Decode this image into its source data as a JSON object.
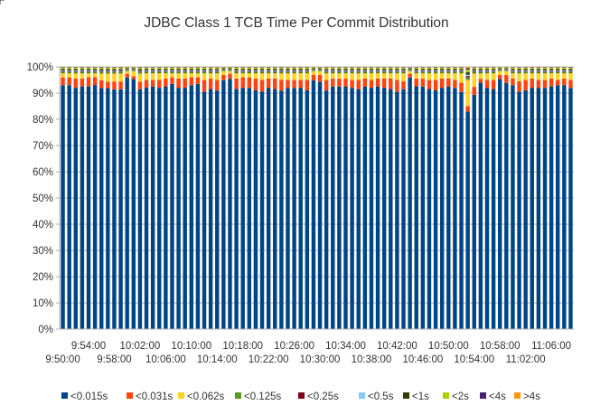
{
  "chart_data": {
    "type": "bar",
    "stacked": true,
    "normalized": true,
    "title": "JDBC Class 1 TCB Time Per Commit Distribution",
    "xlabel": "",
    "ylabel": "",
    "ylim": [
      0,
      100
    ],
    "y_ticks": [
      "0%",
      "10%",
      "20%",
      "30%",
      "40%",
      "50%",
      "60%",
      "70%",
      "80%",
      "90%",
      "100%"
    ],
    "x_tick_labels_upper": [
      "9:54:00",
      "10:02:00",
      "10:10:00",
      "10:18:00",
      "10:26:00",
      "10:34:00",
      "10:42:00",
      "10:50:00",
      "10:58:00",
      "11:06:00"
    ],
    "x_tick_labels_lower": [
      "9:50:00",
      "9:58:00",
      "10:06:00",
      "10:14:00",
      "10:22:00",
      "10:30:00",
      "10:38:00",
      "10:46:00",
      "10:54:00",
      "11:02:00"
    ],
    "grid": true,
    "legend_position": "bottom",
    "categories_count": 80,
    "series": [
      {
        "name": "<0.015s",
        "color": "#004586",
        "values": [
          93,
          93.5,
          92.5,
          93,
          93,
          94,
          92,
          91.5,
          91.5,
          92,
          96,
          95,
          91.5,
          92.5,
          93,
          92,
          93,
          94,
          92.5,
          92.5,
          93.5,
          94,
          91,
          92,
          91,
          95,
          95,
          92,
          92.5,
          92,
          91.5,
          91,
          92.5,
          92,
          91,
          92,
          92,
          92.5,
          91.5,
          95,
          94,
          91,
          92.5,
          92.5,
          93,
          92,
          91.5,
          93,
          92.5,
          93,
          92.5,
          92,
          90.5,
          91.5,
          96,
          93.5,
          92.5,
          92,
          91.5,
          92.5,
          93,
          92,
          90,
          83,
          88,
          93,
          92.5,
          92,
          95.5,
          94,
          93.5,
          91,
          91.5,
          92.5,
          92.5,
          92,
          93,
          93.5,
          93.5,
          92
        ]
      },
      {
        "name": "<0.031s",
        "color": "#ff420e",
        "values": [
          3,
          3,
          3.5,
          3,
          3.5,
          3,
          3,
          2.5,
          3,
          3,
          1.5,
          1,
          3,
          3,
          2.5,
          3,
          3,
          2.5,
          3.5,
          3.5,
          3,
          2.5,
          4.5,
          4,
          4,
          2,
          2,
          4,
          4,
          4,
          4.5,
          4.5,
          3.5,
          4,
          4,
          3,
          3,
          3,
          4,
          2,
          2.5,
          4,
          3,
          3,
          3,
          3,
          3.5,
          3,
          3,
          3,
          3.5,
          4,
          4.5,
          3,
          1.5,
          3,
          3,
          3.5,
          4,
          3.5,
          3,
          3,
          3.5,
          2,
          3,
          1.5,
          3,
          3.5,
          1.5,
          3,
          2.5,
          4,
          4,
          3.5,
          3,
          3,
          3,
          2,
          2.5,
          3
        ]
      },
      {
        "name": "<0.062s",
        "color": "#ffd320",
        "values": [
          1.5,
          1.5,
          2,
          2,
          1.5,
          1.5,
          2.5,
          3,
          3,
          3,
          1,
          2,
          3,
          2.5,
          2.5,
          2.5,
          2,
          1.5,
          2,
          2,
          1.5,
          1.5,
          2.5,
          2,
          2.5,
          1.5,
          1,
          2,
          1.5,
          1.5,
          2,
          2.5,
          2,
          2,
          2.5,
          2.5,
          2.5,
          2.5,
          2.5,
          1.5,
          1.5,
          2.5,
          2,
          2,
          2,
          2.5,
          2.5,
          2,
          2.5,
          2,
          2,
          2,
          2.5,
          3,
          1,
          2,
          2,
          2.5,
          2.5,
          2,
          2,
          2.5,
          3.5,
          10,
          5,
          2,
          2.5,
          2.5,
          1.5,
          1.5,
          2,
          3,
          2.5,
          2,
          2.5,
          2.5,
          2,
          2.5,
          2,
          2.5
        ]
      },
      {
        "name": "<0.125s",
        "color": "#579d1c",
        "values": [
          0.5,
          0.5,
          0.5,
          0.5,
          0.5,
          0.5,
          0.5,
          0.5,
          0.5,
          0.5,
          0.3,
          0.3,
          0.5,
          0.5,
          0.5,
          0.5,
          0.5,
          0.5,
          0.5,
          0.5,
          0.5,
          0.5,
          0.5,
          0.5,
          0.5,
          0.3,
          0.3,
          0.5,
          0.5,
          0.5,
          0.5,
          0.5,
          0.5,
          0.5,
          0.5,
          0.5,
          0.5,
          0.5,
          0.5,
          0.3,
          0.3,
          0.5,
          0.5,
          0.5,
          0.5,
          0.5,
          0.5,
          0.5,
          0.5,
          0.5,
          0.5,
          0.5,
          0.5,
          0.5,
          0.3,
          0.5,
          0.5,
          0.5,
          0.5,
          0.5,
          0.5,
          0.5,
          0.5,
          1,
          0.5,
          0.5,
          0.5,
          0.5,
          0.3,
          0.3,
          0.5,
          0.5,
          0.5,
          0.5,
          0.5,
          0.5,
          0.5,
          0.5,
          0.5,
          0.5
        ]
      },
      {
        "name": "<0.25s",
        "color": "#7e0021",
        "values": [
          0.3,
          0.3,
          0.3,
          0.3,
          0.3,
          0.3,
          0.3,
          0.3,
          0.3,
          0.3,
          0.2,
          0.2,
          0.3,
          0.3,
          0.3,
          0.3,
          0.3,
          0.3,
          0.3,
          0.3,
          0.3,
          0.3,
          0.3,
          0.3,
          0.3,
          0.2,
          0.2,
          0.3,
          0.3,
          0.3,
          0.3,
          0.3,
          0.3,
          0.3,
          0.3,
          0.3,
          0.3,
          0.3,
          0.3,
          0.2,
          0.2,
          0.3,
          0.3,
          0.3,
          0.3,
          0.3,
          0.3,
          0.3,
          0.3,
          0.3,
          0.3,
          0.3,
          0.3,
          0.3,
          0.2,
          0.3,
          0.3,
          0.3,
          0.3,
          0.3,
          0.3,
          0.3,
          0.3,
          0.5,
          0.3,
          0.3,
          0.3,
          0.3,
          0.2,
          0.2,
          0.3,
          0.3,
          0.3,
          0.3,
          0.3,
          0.3,
          0.3,
          0.3,
          0.3,
          0.3
        ]
      },
      {
        "name": "<0.5s",
        "color": "#83caff",
        "values": [
          0.3,
          0.3,
          0.3,
          0.3,
          0.3,
          0.3,
          0.3,
          0.3,
          0.3,
          0.3,
          0.2,
          0.2,
          0.3,
          0.3,
          0.3,
          0.3,
          0.3,
          0.3,
          0.3,
          0.3,
          0.3,
          0.3,
          0.3,
          0.3,
          0.3,
          0.2,
          0.2,
          0.3,
          0.3,
          0.3,
          0.3,
          0.3,
          0.3,
          0.3,
          0.3,
          0.3,
          0.3,
          0.3,
          0.3,
          0.2,
          0.2,
          0.3,
          0.3,
          0.3,
          0.3,
          0.3,
          0.3,
          0.3,
          0.3,
          0.3,
          0.3,
          0.3,
          0.3,
          0.3,
          0.2,
          0.3,
          0.3,
          0.3,
          0.3,
          0.3,
          0.3,
          0.3,
          0.3,
          0.5,
          0.3,
          0.3,
          0.3,
          0.3,
          0.2,
          0.2,
          0.3,
          0.3,
          0.3,
          0.3,
          0.3,
          0.3,
          0.3,
          0.3,
          0.3,
          0.3
        ]
      },
      {
        "name": "<1s",
        "color": "#314004",
        "values": [
          0.6,
          0.6,
          0.6,
          0.6,
          0.6,
          0.6,
          0.7,
          0.7,
          0.7,
          0.7,
          0.4,
          0.4,
          0.7,
          0.6,
          0.6,
          0.6,
          0.6,
          0.6,
          0.6,
          0.6,
          0.6,
          0.6,
          0.6,
          0.6,
          0.6,
          0.4,
          0.4,
          0.6,
          0.6,
          0.6,
          0.6,
          0.6,
          0.6,
          0.6,
          0.6,
          0.6,
          0.6,
          0.6,
          0.6,
          0.4,
          0.4,
          0.6,
          0.6,
          0.6,
          0.6,
          0.6,
          0.6,
          0.6,
          0.6,
          0.6,
          0.6,
          0.6,
          0.6,
          0.6,
          0.4,
          0.6,
          0.6,
          0.6,
          0.6,
          0.6,
          0.6,
          0.6,
          0.6,
          1,
          0.6,
          0.6,
          0.6,
          0.6,
          0.4,
          0.4,
          0.6,
          0.6,
          0.6,
          0.6,
          0.6,
          0.6,
          0.6,
          0.6,
          0.6,
          0.6
        ]
      },
      {
        "name": "<2s",
        "color": "#aecf00",
        "values": [
          0.5,
          0.5,
          0.5,
          0.5,
          0.5,
          0.5,
          0.5,
          0.5,
          0.5,
          0.5,
          0.3,
          0.3,
          0.5,
          0.5,
          0.5,
          0.5,
          0.5,
          0.5,
          0.5,
          0.5,
          0.5,
          0.5,
          0.5,
          0.5,
          0.5,
          0.3,
          0.3,
          0.5,
          0.5,
          0.5,
          0.5,
          0.5,
          0.5,
          0.5,
          0.5,
          0.5,
          0.5,
          0.5,
          0.5,
          0.3,
          0.3,
          0.5,
          0.5,
          0.5,
          0.5,
          0.5,
          0.5,
          0.5,
          0.5,
          0.5,
          0.5,
          0.5,
          0.5,
          0.5,
          0.3,
          0.5,
          0.5,
          0.5,
          0.5,
          0.5,
          0.5,
          0.5,
          0.5,
          1,
          0.5,
          0.5,
          0.5,
          0.5,
          0.3,
          0.3,
          0.5,
          0.5,
          0.5,
          0.5,
          0.5,
          0.5,
          0.5,
          0.5,
          0.5,
          0.5
        ]
      },
      {
        "name": "<4s",
        "color": "#4b1f6f",
        "values": [
          0.2,
          0.2,
          0.2,
          0.2,
          0.2,
          0.2,
          0.2,
          0.2,
          0.2,
          0.2,
          0.1,
          0.1,
          0.2,
          0.2,
          0.2,
          0.2,
          0.2,
          0.2,
          0.2,
          0.2,
          0.2,
          0.2,
          0.2,
          0.2,
          0.2,
          0.1,
          0.1,
          0.2,
          0.2,
          0.2,
          0.2,
          0.2,
          0.2,
          0.2,
          0.2,
          0.2,
          0.2,
          0.2,
          0.2,
          0.1,
          0.1,
          0.2,
          0.2,
          0.2,
          0.2,
          0.2,
          0.2,
          0.2,
          0.2,
          0.2,
          0.2,
          0.2,
          0.2,
          0.2,
          0.1,
          0.2,
          0.2,
          0.2,
          0.2,
          0.2,
          0.2,
          0.2,
          0.2,
          0.5,
          0.2,
          0.2,
          0.2,
          0.2,
          0.1,
          0.1,
          0.2,
          0.2,
          0.2,
          0.2,
          0.2,
          0.2,
          0.2,
          0.2,
          0.2,
          0.2
        ]
      },
      {
        "name": ">4s",
        "color": "#ff950e",
        "values": [
          0.1,
          0.1,
          0.1,
          0.1,
          0.1,
          0.1,
          0.1,
          0.1,
          0.1,
          0.1,
          0.1,
          0.1,
          0.1,
          0.1,
          0.1,
          0.1,
          0.1,
          0.1,
          0.1,
          0.1,
          0.1,
          0.1,
          0.1,
          0.1,
          0.1,
          0.1,
          0.1,
          0.1,
          0.1,
          0.1,
          0.1,
          0.1,
          0.1,
          0.1,
          0.1,
          0.1,
          0.1,
          0.1,
          0.1,
          0.1,
          0.1,
          0.1,
          0.1,
          0.1,
          0.1,
          0.1,
          0.1,
          0.1,
          0.1,
          0.1,
          0.1,
          0.1,
          0.1,
          0.1,
          0.1,
          0.1,
          0.1,
          0.1,
          0.1,
          0.1,
          0.1,
          0.1,
          0.1,
          0.5,
          0.1,
          0.1,
          0.1,
          0.1,
          0.1,
          0.1,
          0.1,
          0.1,
          0.1,
          0.1,
          0.1,
          0.1,
          0.1,
          0.1,
          0.1,
          0.1
        ]
      }
    ]
  }
}
